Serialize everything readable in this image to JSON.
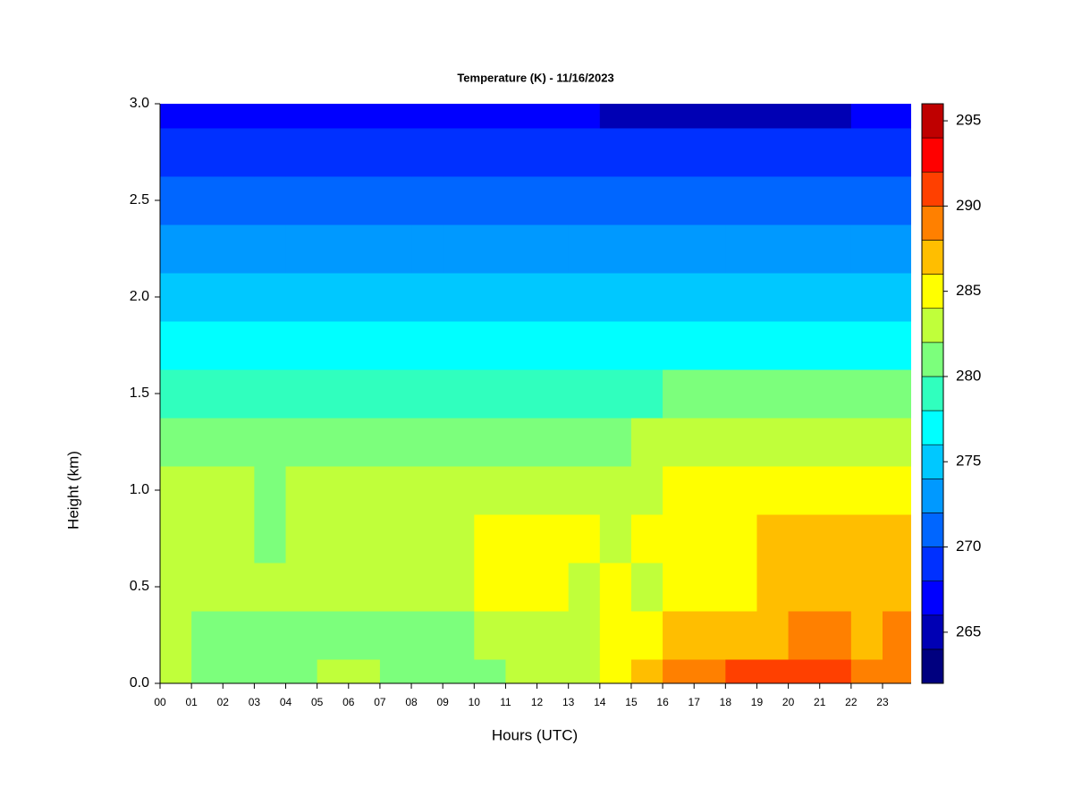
{
  "chart_data": {
    "type": "heatmap",
    "title": "Temperature (K) - 11/16/2023",
    "xlabel": "Hours (UTC)",
    "ylabel": "Height (km)",
    "x": [
      0,
      1,
      2,
      3,
      4,
      5,
      6,
      7,
      8,
      9,
      10,
      11,
      12,
      13,
      14,
      15,
      16,
      17,
      18,
      19,
      20,
      21,
      22,
      23
    ],
    "y": [
      0,
      0.25,
      0.5,
      0.75,
      1,
      1.25,
      1.5,
      1.75,
      2,
      2.25,
      2.5,
      2.75,
      3
    ],
    "z": [
      [
        283,
        281,
        281,
        281,
        281,
        283,
        283,
        281,
        281,
        281,
        281,
        283,
        283,
        283,
        285,
        287,
        289,
        289,
        291,
        291,
        291,
        291,
        289,
        289
      ],
      [
        283,
        281,
        281,
        281,
        281,
        281,
        281,
        281,
        281,
        281,
        283,
        283,
        283,
        283,
        285,
        285,
        287,
        287,
        287,
        287,
        289,
        289,
        287,
        289
      ],
      [
        283,
        283,
        283,
        283,
        283,
        283,
        283,
        283,
        283,
        283,
        285,
        285,
        285,
        283,
        285,
        283,
        285,
        285,
        285,
        287,
        287,
        287,
        287,
        287
      ],
      [
        283,
        283,
        283,
        281,
        283,
        283,
        283,
        283,
        283,
        283,
        285,
        285,
        285,
        285,
        283,
        285,
        285,
        285,
        285,
        287,
        287,
        287,
        287,
        287
      ],
      [
        283,
        283,
        283,
        281,
        283,
        283,
        283,
        283,
        283,
        283,
        283,
        283,
        283,
        283,
        283,
        283,
        285,
        285,
        285,
        285,
        285,
        285,
        285,
        285
      ],
      [
        281,
        281,
        281,
        281,
        281,
        281,
        281,
        281,
        281,
        281,
        281,
        281,
        281,
        281,
        281,
        283,
        283,
        283,
        283,
        283,
        283,
        283,
        283,
        283
      ],
      [
        279,
        279,
        279,
        279,
        279,
        279,
        279,
        279,
        279,
        279,
        279,
        279,
        279,
        279,
        279,
        279,
        281,
        281,
        281,
        281,
        281,
        281,
        281,
        281
      ],
      [
        277,
        277,
        277,
        277,
        277,
        277,
        277,
        277,
        277,
        277,
        277,
        277,
        277,
        277,
        277,
        277,
        277,
        277,
        277,
        277,
        277,
        277,
        277,
        277
      ],
      [
        275,
        275,
        275,
        275,
        275,
        275,
        275,
        275,
        275,
        275,
        275,
        275,
        275,
        275,
        275,
        275,
        275,
        275,
        275,
        275,
        275,
        275,
        275,
        275
      ],
      [
        272,
        272,
        272,
        272,
        272,
        272,
        272,
        272,
        272,
        272,
        272,
        272,
        272,
        272,
        272,
        272,
        272,
        272,
        272,
        272,
        272,
        272,
        272,
        272
      ],
      [
        270,
        270,
        270,
        270,
        270,
        270,
        270,
        270,
        270,
        270,
        270,
        270,
        270,
        270,
        270,
        270,
        270,
        270,
        270,
        270,
        270,
        270,
        270,
        270
      ],
      [
        268,
        268,
        268,
        268,
        268,
        268,
        268,
        268,
        268,
        268,
        268,
        268,
        268,
        268,
        268,
        268,
        268,
        268,
        268,
        268,
        268,
        268,
        268,
        268
      ],
      [
        267,
        267,
        267,
        267,
        267,
        267,
        267,
        267,
        267,
        267,
        267,
        267,
        267,
        267,
        265,
        265,
        265,
        265,
        265,
        265,
        265,
        265,
        267,
        267
      ]
    ],
    "xlim": [
      0,
      23.9
    ],
    "ylim": [
      0,
      3
    ],
    "xticks": [
      {
        "value": 0,
        "label": "00"
      },
      {
        "value": 1,
        "label": "01"
      },
      {
        "value": 2,
        "label": "02"
      },
      {
        "value": 3,
        "label": "03"
      },
      {
        "value": 4,
        "label": "04"
      },
      {
        "value": 5,
        "label": "05"
      },
      {
        "value": 6,
        "label": "06"
      },
      {
        "value": 7,
        "label": "07"
      },
      {
        "value": 8,
        "label": "08"
      },
      {
        "value": 9,
        "label": "09"
      },
      10,
      11,
      12,
      13,
      14,
      15,
      16,
      17,
      18,
      19,
      20,
      21,
      22,
      23
    ],
    "yticks": [
      {
        "value": 0,
        "label": "0.0"
      },
      0.5,
      {
        "value": 1,
        "label": "1.0"
      },
      1.5,
      {
        "value": 2,
        "label": "2.0"
      },
      2.5,
      {
        "value": 3,
        "label": "3.0"
      }
    ],
    "colorbar": {
      "levels": [
        262,
        264,
        266,
        268,
        270,
        272,
        274,
        276,
        278,
        280,
        282,
        284,
        286,
        288,
        290,
        292,
        294,
        296
      ],
      "colors": [
        "#00007f",
        "#0000b4",
        "#0000ff",
        "#0030ff",
        "#0066ff",
        "#0099ff",
        "#00c8ff",
        "#00ffff",
        "#30ffbe",
        "#7cff7c",
        "#c0ff3a",
        "#ffff00",
        "#ffbe00",
        "#ff8000",
        "#ff4000",
        "#ff0000",
        "#bf0000"
      ],
      "ticks": [
        265,
        270,
        275,
        280,
        285,
        290,
        295
      ]
    }
  }
}
